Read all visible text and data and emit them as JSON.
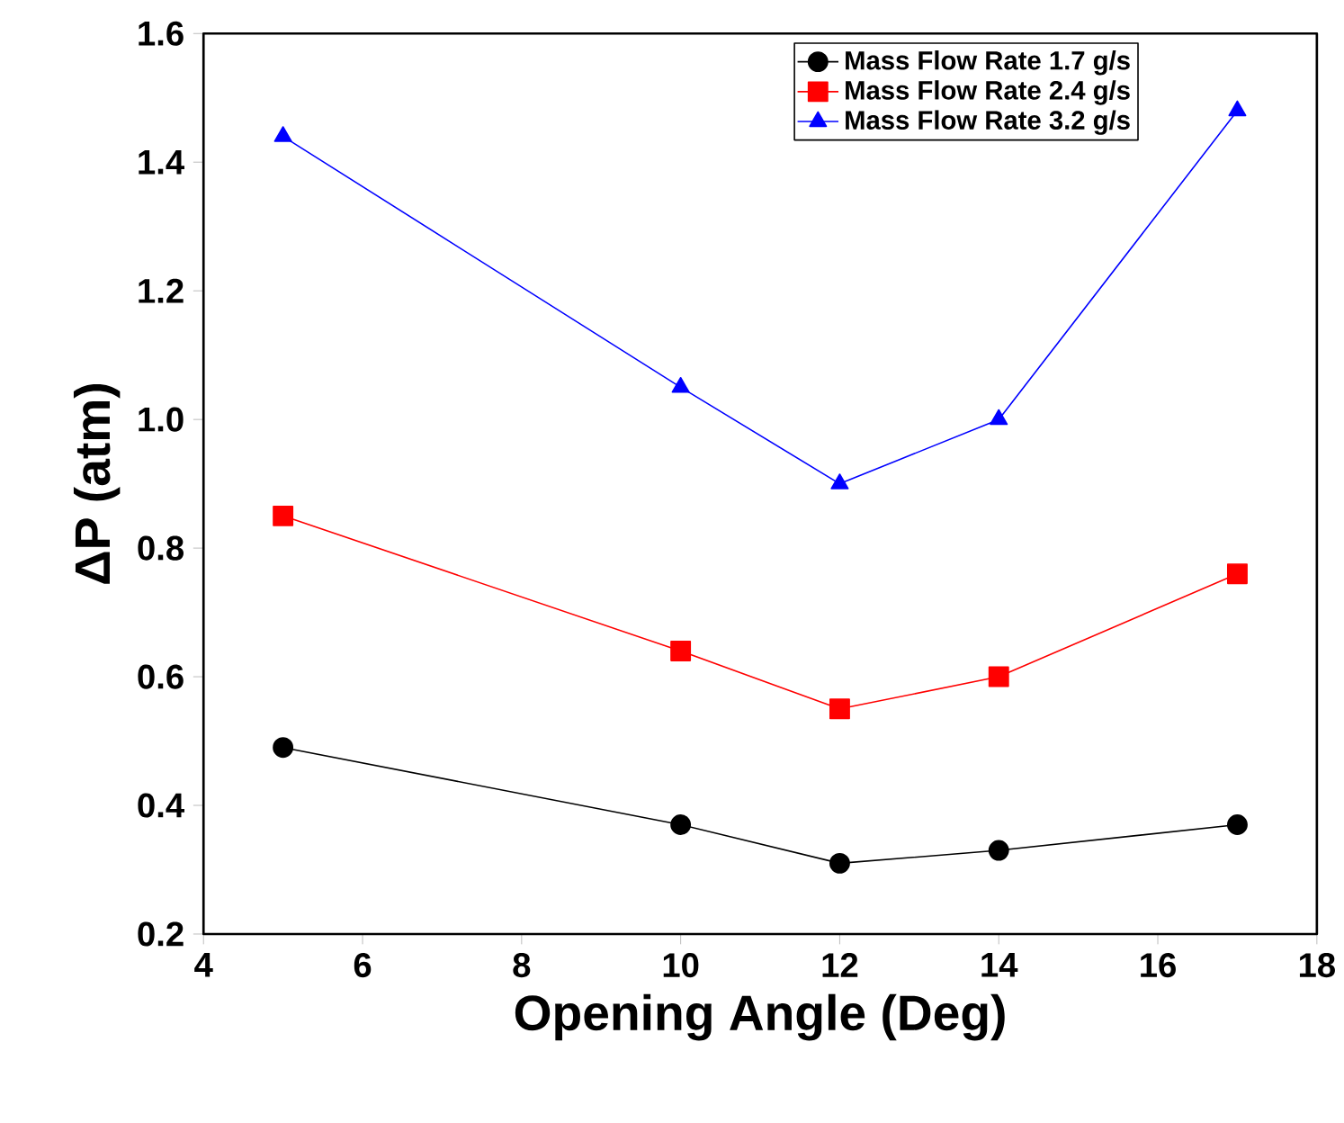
{
  "chart_data": {
    "type": "line",
    "xlabel": "Opening Angle (Deg)",
    "ylabel": "ΔP (atm)",
    "x": [
      5,
      10,
      12,
      14,
      17
    ],
    "series": [
      {
        "name": "Mass Flow Rate 1.7 g/s",
        "color": "#000000",
        "marker": "circle",
        "values": [
          0.49,
          0.37,
          0.31,
          0.33,
          0.37
        ]
      },
      {
        "name": "Mass Flow Rate 2.4 g/s",
        "color": "#ff0000",
        "marker": "square",
        "values": [
          0.85,
          0.64,
          0.55,
          0.6,
          0.76
        ]
      },
      {
        "name": "Mass Flow Rate 3.2 g/s",
        "color": "#0000ff",
        "marker": "triangle",
        "values": [
          1.44,
          1.05,
          0.9,
          1.0,
          1.48
        ]
      }
    ],
    "xlim": [
      4,
      18
    ],
    "xticks": [
      4,
      6,
      8,
      10,
      12,
      14,
      16,
      18
    ],
    "ylim": [
      0.2,
      1.6
    ],
    "yticks": [
      0.2,
      0.4,
      0.6,
      0.8,
      {
        "value": 1,
        "label": "1.0"
      },
      1.2,
      1.4,
      1.6
    ],
    "legend": "top right",
    "line_style": "solid"
  }
}
